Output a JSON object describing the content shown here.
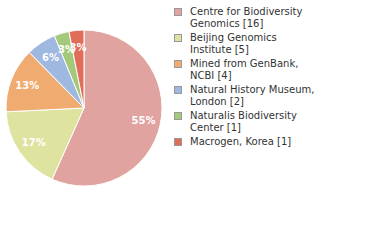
{
  "chart_data": {
    "type": "pie",
    "categories": [
      "Centre for Biodiversity Genomics [16]",
      "Beijing Genomics Institute [5]",
      "Mined from GenBank, NCBI [4]",
      "Natural History Museum, London [2]",
      "Naturalis Biodiversity Center [1]",
      "Macrogen, Korea [1]"
    ],
    "values": [
      55,
      17,
      13,
      6,
      3,
      3
    ],
    "value_labels": [
      "55%",
      "17%",
      "13%",
      "6%",
      "3%",
      "3%"
    ],
    "data_labels": true,
    "legend": "top-right",
    "colors": [
      "#e0a39f",
      "#dfe3a0",
      "#f0ab70",
      "#9fb8e0",
      "#a4c97b",
      "#e06d5a"
    ]
  }
}
